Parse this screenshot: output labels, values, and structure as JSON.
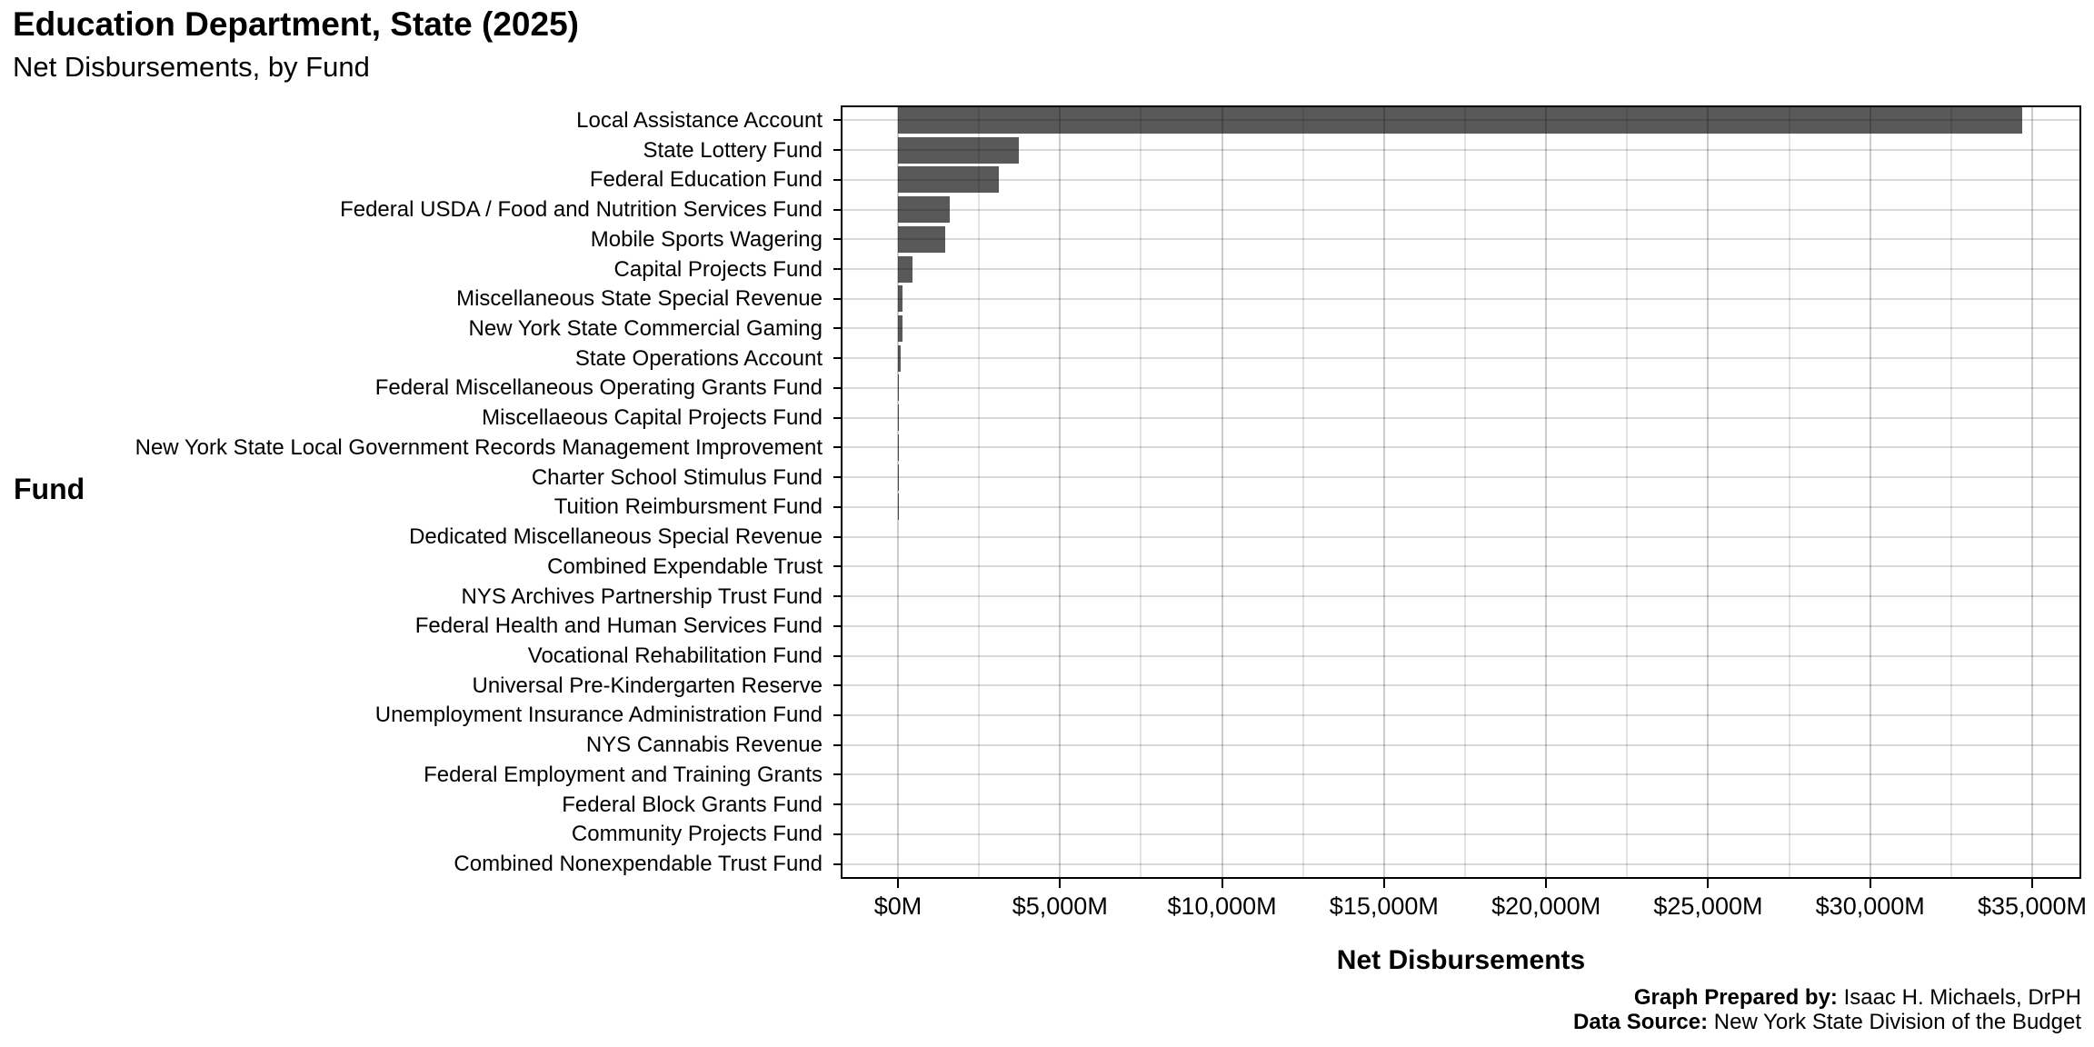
{
  "header": {
    "title": "Education Department, State (2025)",
    "subtitle": "Net Disbursements, by Fund"
  },
  "chart_data": {
    "type": "bar",
    "orientation": "horizontal",
    "title": "Education Department, State (2025)",
    "subtitle": "Net Disbursements, by Fund",
    "xlabel": "Net Disbursements",
    "ylabel": "Fund",
    "unit": "millions of dollars",
    "bar_color": "#595959",
    "background_color": "#ffffff",
    "legend": "none",
    "grid": "horizontal major per category; vertical major every 5000, minor every 2500",
    "xlim": [
      -1736,
      36456
    ],
    "x_major_ticks": [
      0,
      5000,
      10000,
      15000,
      20000,
      25000,
      30000,
      35000
    ],
    "x_tick_labels": [
      "$0M",
      "$5,000M",
      "$10,000M",
      "$15,000M",
      "$20,000M",
      "$25,000M",
      "$30,000M",
      "$35,000M"
    ],
    "x_minor_ticks": [
      2500,
      7500,
      12500,
      17500,
      22500,
      27500,
      32500
    ],
    "categories": [
      "Local Assistance Account",
      "State Lottery Fund",
      "Federal Education Fund",
      "Federal USDA / Food and Nutrition Services Fund",
      "Mobile Sports Wagering",
      "Capital Projects Fund",
      "Miscellaneous State Special Revenue",
      "New York State Commercial Gaming",
      "State Operations Account",
      "Federal Miscellaneous Operating Grants Fund",
      "Miscellaeous Capital Projects Fund",
      "New York State Local Government Records Management Improvement",
      "Charter School Stimulus Fund",
      "Tuition Reimbursment Fund",
      "Dedicated Miscellaneous Special Revenue",
      "Combined Expendable Trust",
      "NYS Archives Partnership Trust Fund",
      "Federal Health and Human Services Fund",
      "Vocational Rehabilitation Fund",
      "Universal Pre-Kindergarten Reserve",
      "Unemployment Insurance Administration Fund",
      "NYS Cannabis Revenue",
      "Federal Employment and Training Grants",
      "Federal Block Grants Fund",
      "Community Projects Fund",
      "Combined Nonexpendable Trust Fund"
    ],
    "values": [
      34700,
      3720,
      3110,
      1600,
      1455,
      450,
      150,
      140,
      85,
      30,
      12,
      4,
      3,
      2.5,
      2,
      1.8,
      1.5,
      1.2,
      1,
      0.8,
      0.6,
      0.5,
      0.4,
      0.3,
      0.2,
      0.1
    ]
  },
  "footer": {
    "prepared_by_label": "Graph Prepared by:",
    "prepared_by_value": " Isaac H. Michaels, DrPH",
    "source_label": "Data Source:",
    "source_value": " New York State Division of the Budget"
  }
}
